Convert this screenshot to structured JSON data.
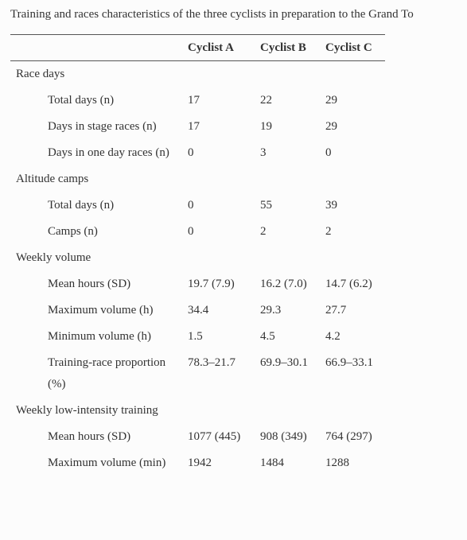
{
  "title": "Training and races characteristics of the three cyclists in preparation to the Grand To",
  "table": {
    "columns": [
      "Cyclist A",
      "Cyclist B",
      "Cyclist C"
    ],
    "sections": [
      {
        "label": "Race days",
        "rows": [
          {
            "label": "Total days (n)",
            "values": [
              "17",
              "22",
              "29"
            ]
          },
          {
            "label": "Days in stage races (n)",
            "values": [
              "17",
              "19",
              "29"
            ]
          },
          {
            "label": "Days in one day races (n)",
            "values": [
              "0",
              "3",
              "0"
            ]
          }
        ]
      },
      {
        "label": "Altitude camps",
        "rows": [
          {
            "label": "Total days (n)",
            "values": [
              "0",
              "55",
              "39"
            ]
          },
          {
            "label": "Camps (n)",
            "values": [
              "0",
              "2",
              "2"
            ]
          }
        ]
      },
      {
        "label": "Weekly volume",
        "rows": [
          {
            "label": "Mean hours (SD)",
            "values": [
              "19.7 (7.9)",
              "16.2 (7.0)",
              "14.7 (6.2)"
            ]
          },
          {
            "label": "Maximum volume (h)",
            "values": [
              "34.4",
              "29.3",
              "27.7"
            ]
          },
          {
            "label": "Minimum volume (h)",
            "values": [
              "1.5",
              "4.5",
              "4.2"
            ]
          },
          {
            "label": "Training-race proportion (%)",
            "values": [
              "78.3–21.7",
              "69.9–30.1",
              "66.9–33.1"
            ]
          }
        ]
      },
      {
        "label": "Weekly low-intensity training",
        "rows": [
          {
            "label": "Mean hours (SD)",
            "values": [
              "1077 (445)",
              "908 (349)",
              "764 (297)"
            ]
          },
          {
            "label": "Maximum volume (min)",
            "values": [
              "1942",
              "1484",
              "1288"
            ]
          }
        ]
      }
    ]
  }
}
